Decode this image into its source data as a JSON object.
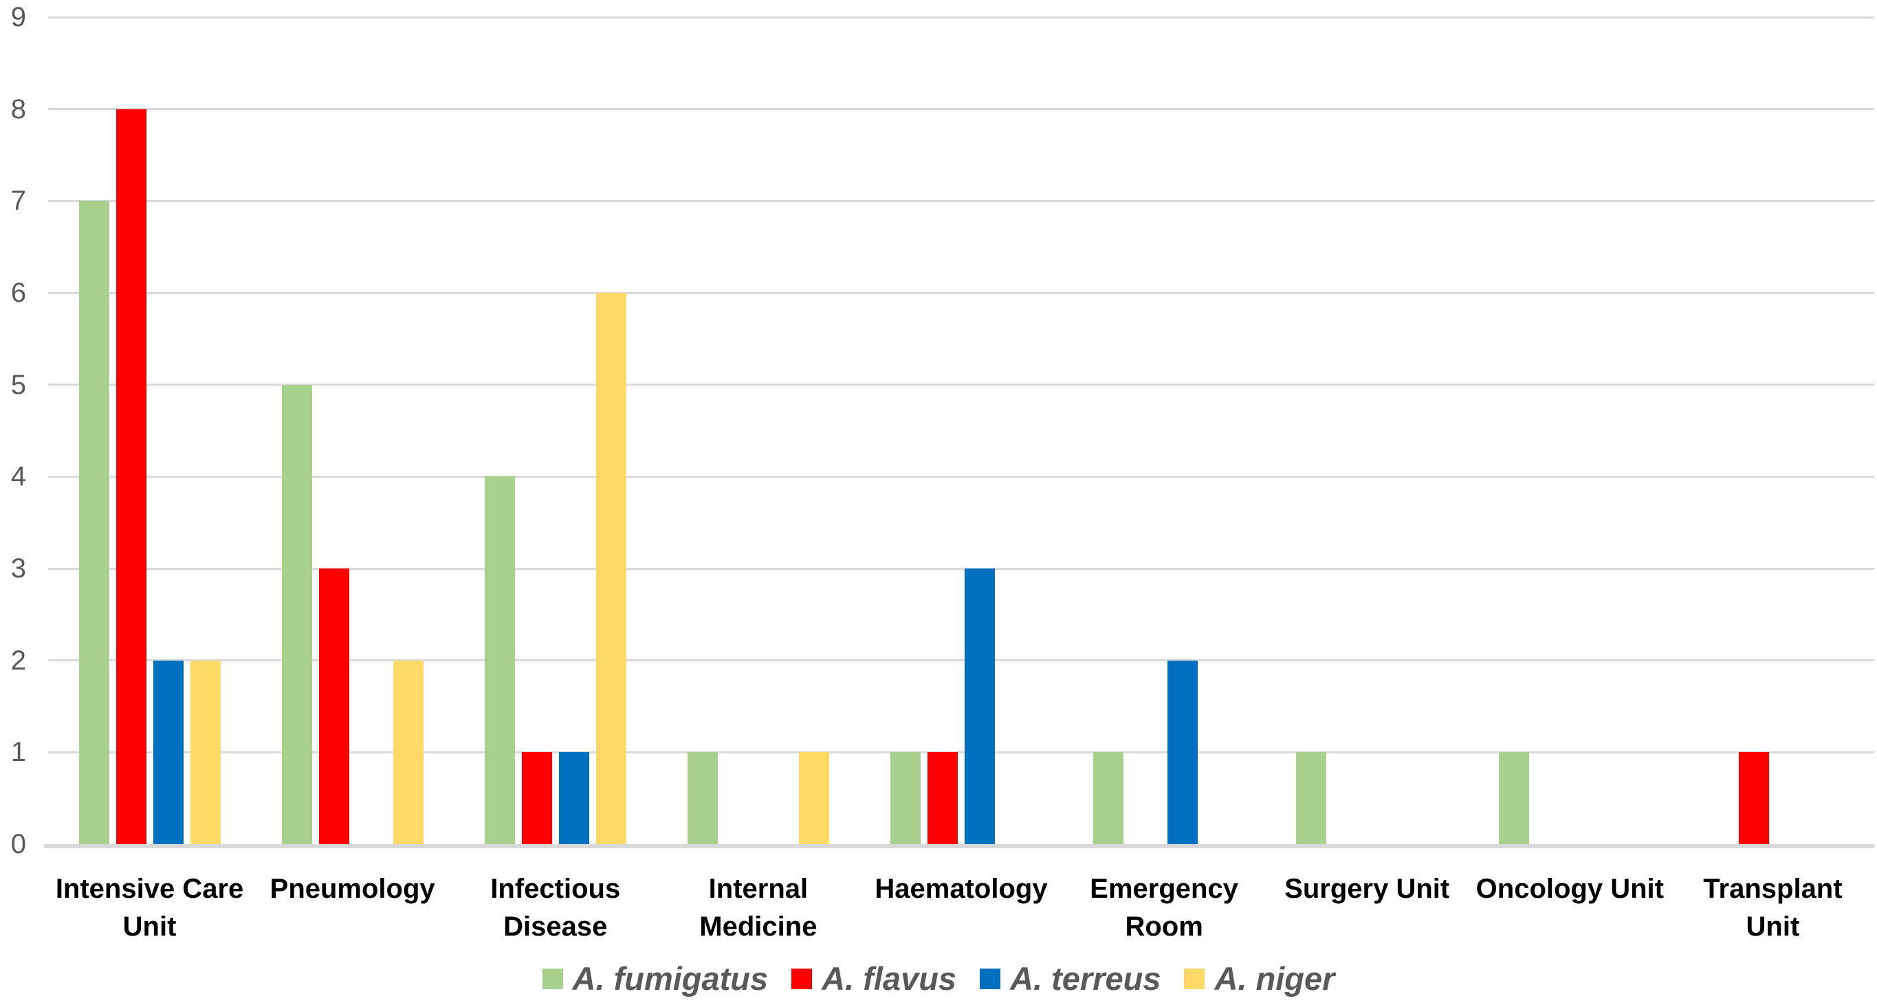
{
  "chart_data": {
    "type": "bar",
    "title": "",
    "xlabel": "",
    "ylabel": "",
    "ylim": [
      0,
      9
    ],
    "y_ticks": [
      0,
      1,
      2,
      3,
      4,
      5,
      6,
      7,
      8,
      9
    ],
    "grid": true,
    "legend_position": "bottom",
    "categories": [
      "Intensive Care\nUnit",
      "Pneumology",
      "Infectious\nDisease",
      "Internal\nMedicine",
      "Haematology",
      "Emergency\nRoom",
      "Surgery Unit",
      "Oncology Unit",
      "Transplant\nUnit"
    ],
    "series": [
      {
        "name": "A. fumigatus",
        "color": "#A9D18E",
        "values": [
          7,
          5,
          4,
          1,
          1,
          1,
          1,
          1,
          0
        ]
      },
      {
        "name": "A. flavus",
        "color": "#FF0000",
        "values": [
          8,
          3,
          1,
          0,
          1,
          0,
          0,
          0,
          1
        ]
      },
      {
        "name": "A. terreus",
        "color": "#0070C0",
        "values": [
          2,
          0,
          1,
          0,
          3,
          2,
          0,
          0,
          0
        ]
      },
      {
        "name": "A. niger",
        "color": "#FFD966",
        "values": [
          2,
          2,
          6,
          1,
          0,
          0,
          0,
          0,
          0
        ]
      }
    ]
  },
  "colors": {
    "background": "#FFFFFF",
    "gridline": "#D9D9D9",
    "axis_line": "#D9D9D9",
    "tick_label": "#595959",
    "category_label": "#000000",
    "legend_label": "#595959"
  }
}
